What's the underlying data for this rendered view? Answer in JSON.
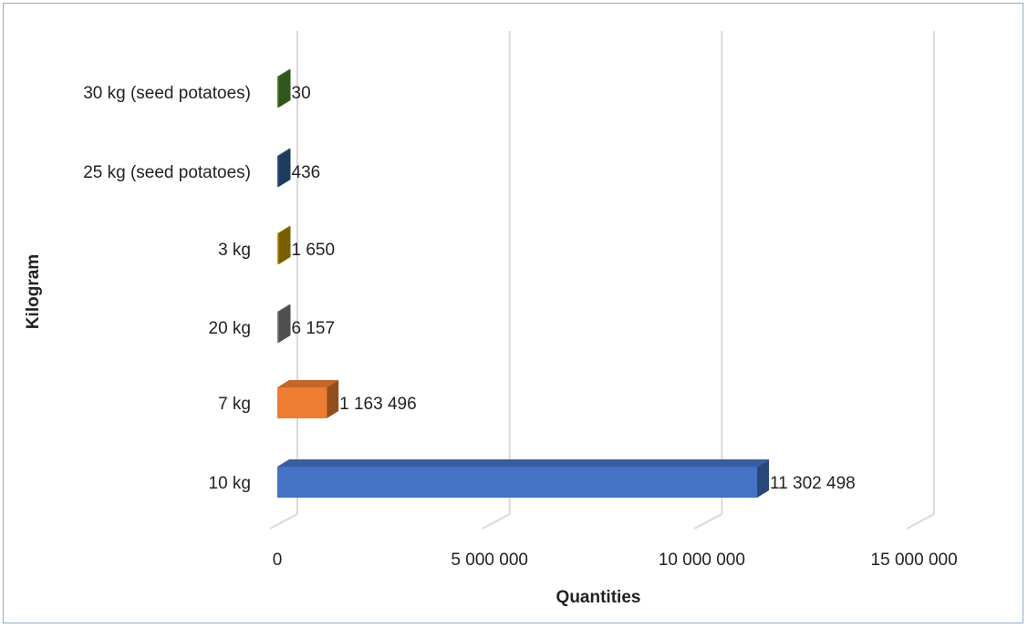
{
  "chart_data": {
    "type": "bar",
    "orientation": "horizontal",
    "style": "3d",
    "xlabel": "Quantities",
    "ylabel": "Kilogram",
    "xlim": [
      0,
      15000000
    ],
    "x_ticks": [
      0,
      5000000,
      10000000,
      15000000
    ],
    "x_tick_labels": [
      "0",
      "5 000 000",
      "10 000 000",
      "15 000 000"
    ],
    "grid": true,
    "legend": "none",
    "categories": [
      "10 kg",
      "7 kg",
      "20 kg",
      "3 kg",
      "25 kg (seed potatoes)",
      "30 kg (seed potatoes)"
    ],
    "values": [
      11302498,
      1163496,
      6157,
      1650,
      436,
      30
    ],
    "data_labels": [
      "11 302 498",
      "1 163 496",
      "6 157",
      "1 650",
      "436",
      "30"
    ],
    "colors": [
      "#4472c4",
      "#ed7d31",
      "#7f7f7f",
      "#c59a00",
      "#2f6092",
      "#4e8a2e"
    ]
  }
}
